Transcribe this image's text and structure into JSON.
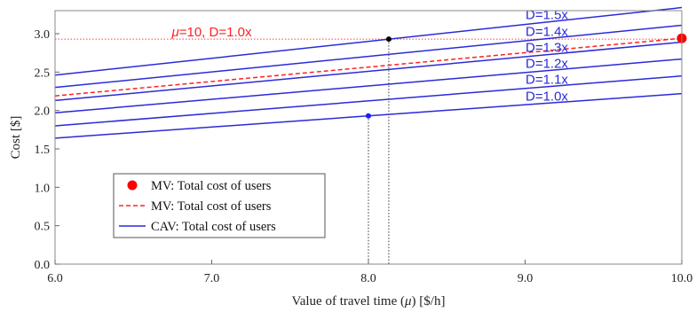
{
  "chart_data": {
    "type": "line",
    "title": "",
    "xlabel": "Value of travel time (μ) [$/h]",
    "xlabel_parts": {
      "before": "Value of travel time (",
      "symbol": "μ",
      "after": ") [$/h]"
    },
    "ylabel": "Cost [$]",
    "xlim": [
      6.0,
      10.0
    ],
    "ylim": [
      0.0,
      3.3
    ],
    "x_ticks": [
      6.0,
      7.0,
      8.0,
      9.0,
      10.0
    ],
    "x_tick_labels": [
      "6.0",
      "7.0",
      "8.0",
      "9.0",
      "10.0"
    ],
    "y_ticks": [
      0.0,
      0.5,
      1.0,
      1.5,
      2.0,
      2.5,
      3.0
    ],
    "y_tick_labels": [
      "0.0",
      "0.5",
      "1.0",
      "1.5",
      "2.0",
      "2.5",
      "3.0"
    ],
    "grid": false,
    "series": [
      {
        "name": "D=1.5x",
        "style": "solid",
        "color": "#2a2ad8",
        "x": [
          6.0,
          10.0
        ],
        "y": [
          2.46,
          3.34
        ]
      },
      {
        "name": "D=1.4x",
        "style": "solid",
        "color": "#2a2ad8",
        "x": [
          6.0,
          10.0
        ],
        "y": [
          2.3,
          3.11
        ]
      },
      {
        "name": "D=1.3x",
        "style": "solid",
        "color": "#2a2ad8",
        "x": [
          6.0,
          10.0
        ],
        "y": [
          2.13,
          2.89
        ]
      },
      {
        "name": "D=1.2x",
        "style": "solid",
        "color": "#2a2ad8",
        "x": [
          6.0,
          10.0
        ],
        "y": [
          1.97,
          2.67
        ]
      },
      {
        "name": "D=1.1x",
        "style": "solid",
        "color": "#2a2ad8",
        "x": [
          6.0,
          10.0
        ],
        "y": [
          1.8,
          2.45
        ]
      },
      {
        "name": "D=1.0x",
        "style": "solid",
        "color": "#2a2ad8",
        "x": [
          6.0,
          10.0
        ],
        "y": [
          1.64,
          2.22
        ]
      },
      {
        "name": "MV: Total cost of users",
        "style": "dashed",
        "color": "#ff2020",
        "x": [
          6.0,
          10.0
        ],
        "y": [
          2.19,
          2.94
        ]
      }
    ],
    "reference_line": {
      "y": 2.93,
      "color": "#ff4040",
      "style": "dotted",
      "label": "μ=10, D=1.0x",
      "label_parts": {
        "symbol": "μ",
        "rest": "=10, D=1.0x"
      }
    },
    "markers": [
      {
        "kind": "mv-point",
        "x": 10.0,
        "y": 2.94,
        "color": "#ff0000"
      },
      {
        "kind": "intersection",
        "x": 8.13,
        "y": 2.93,
        "color": "#000000"
      },
      {
        "kind": "cav-point",
        "x": 8.0,
        "y": 1.93,
        "color": "#1a1aff"
      }
    ],
    "drop_lines": [
      {
        "x": 8.13,
        "y": 2.93,
        "color": "#333333"
      },
      {
        "x": 8.0,
        "y": 1.93,
        "color": "#333333"
      }
    ],
    "legend": {
      "position": "bottom-left",
      "entries": [
        {
          "label": "MV: Total cost of users",
          "marker": "dot",
          "color": "#ff0000"
        },
        {
          "label": "MV: Total cost of users",
          "marker": "dashed-line",
          "color": "#ff2020"
        },
        {
          "label": "CAV: Total cost of users",
          "marker": "solid-line",
          "color": "#2a2ad8"
        }
      ]
    }
  }
}
